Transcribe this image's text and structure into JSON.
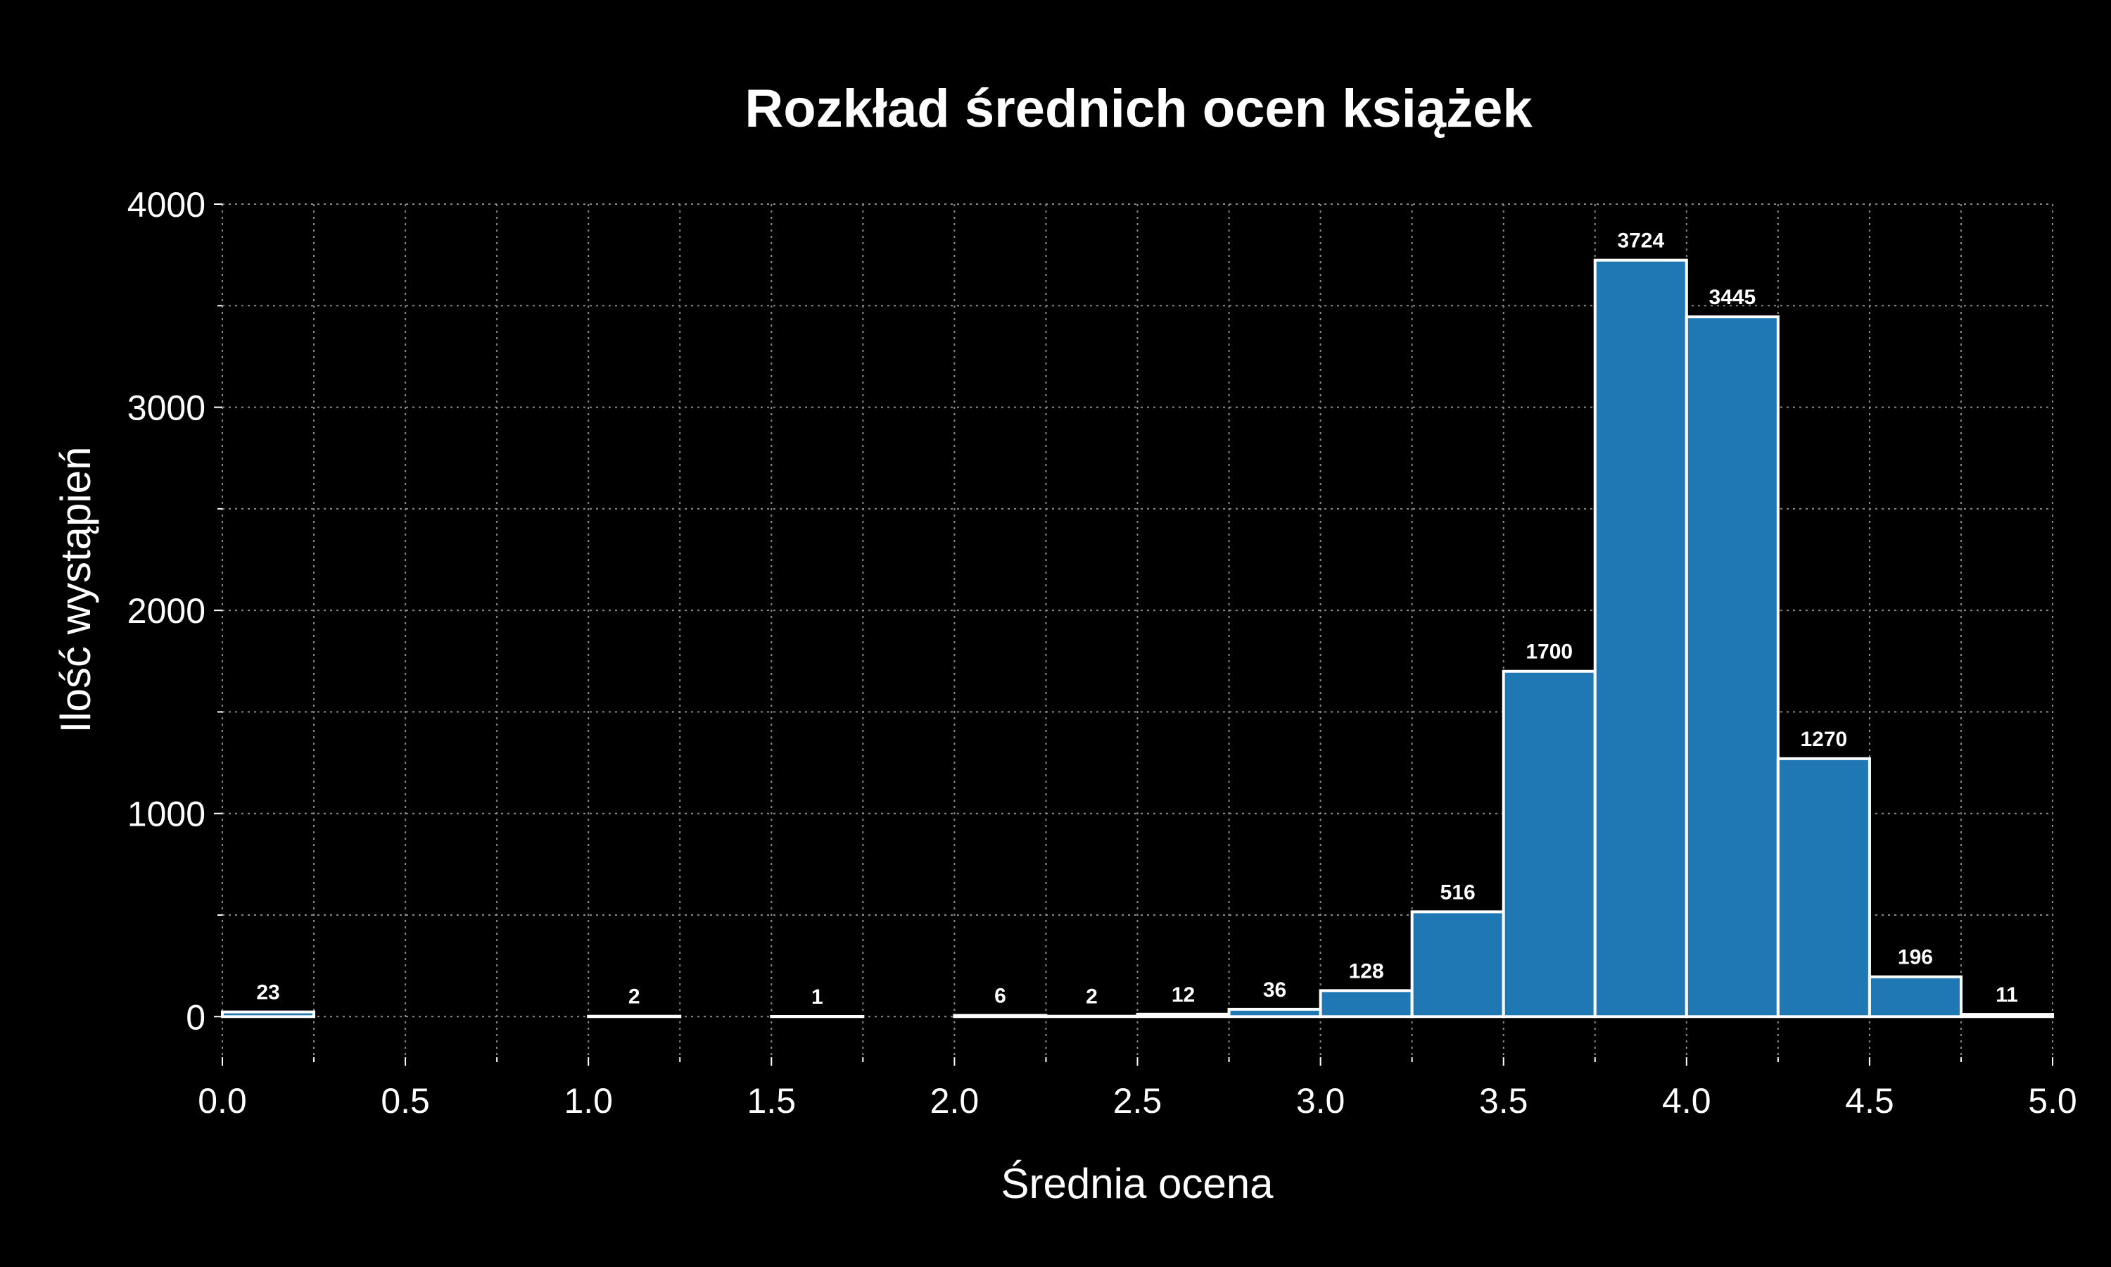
{
  "chart_data": {
    "type": "bar",
    "title": "Rozkład średnich ocen książek",
    "xlabel": "Średnia ocena",
    "ylabel": "Ilość wystąpień",
    "bin_edges": [
      0.0,
      0.25,
      0.5,
      0.75,
      1.0,
      1.25,
      1.5,
      1.75,
      2.0,
      2.25,
      2.5,
      2.75,
      3.0,
      3.25,
      3.5,
      3.75,
      4.0,
      4.25,
      4.5,
      4.75,
      5.0
    ],
    "values": [
      23,
      0,
      0,
      0,
      2,
      0,
      1,
      0,
      6,
      2,
      12,
      36,
      128,
      516,
      1700,
      3724,
      3445,
      1270,
      196,
      11
    ],
    "data_labels": [
      "23",
      "",
      "",
      "",
      "2",
      "",
      "1",
      "",
      "6",
      "2",
      "12",
      "36",
      "128",
      "516",
      "1700",
      "3724",
      "3445",
      "1270",
      "196",
      "11"
    ],
    "xlim": [
      0.0,
      5.0
    ],
    "ylim": [
      -200,
      4000
    ],
    "x_ticks": [
      "0.0",
      "0.5",
      "1.0",
      "1.5",
      "2.0",
      "2.5",
      "3.0",
      "3.5",
      "4.0",
      "4.5",
      "5.0"
    ],
    "y_ticks": [
      "0",
      "1000",
      "2000",
      "3000",
      "4000"
    ],
    "x_tick_values": [
      0.0,
      0.5,
      1.0,
      1.5,
      2.0,
      2.5,
      3.0,
      3.5,
      4.0,
      4.5,
      5.0
    ],
    "y_tick_values": [
      0,
      1000,
      2000,
      3000,
      4000
    ],
    "x_minor_ticks": [
      0.25,
      0.75,
      1.25,
      1.75,
      2.25,
      2.75,
      3.25,
      3.75,
      4.25,
      4.75
    ],
    "y_minor_ticks": [
      500,
      1500,
      2500,
      3500
    ],
    "grid": true,
    "colors": {
      "background": "#000000",
      "bar_fill": "#1f77b4",
      "bar_edge": "#ffffff",
      "text": "#ffffff",
      "grid": "#8a8a8a"
    }
  }
}
